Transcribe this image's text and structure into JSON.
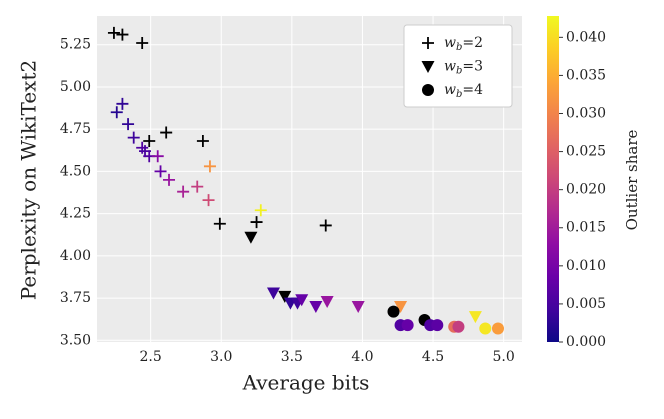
{
  "chart_data": {
    "type": "scatter",
    "x_label": "Average bits",
    "y_label": "Perplexity on WikiText2",
    "colorbar_label": "Outlier share",
    "colormap": "plasma",
    "null_color": "#000000",
    "xlim": [
      2.12,
      5.13
    ],
    "xticks": [
      2.5,
      {
        "value": 3.0,
        "label": "3.0"
      },
      3.5,
      {
        "value": 4.0,
        "label": "4.0"
      },
      4.5,
      {
        "value": 5.0,
        "label": "5.0"
      }
    ],
    "ylim": [
      3.49,
      5.42
    ],
    "yticks": [
      {
        "value": 3.5,
        "label": "3.50"
      },
      3.75,
      {
        "value": 4.0,
        "label": "4.00"
      },
      4.25,
      {
        "value": 4.5,
        "label": "4.50"
      },
      4.75,
      {
        "value": 5.0,
        "label": "5.00"
      },
      5.25
    ],
    "clim": [
      0,
      0.0428
    ],
    "cticks": [
      {
        "value": 0,
        "label": "0.000"
      },
      {
        "value": 0.005,
        "label": "0.005"
      },
      {
        "value": 0.01,
        "label": "0.010"
      },
      {
        "value": 0.015,
        "label": "0.015"
      },
      {
        "value": 0.02,
        "label": "0.020"
      },
      {
        "value": 0.025,
        "label": "0.025"
      },
      {
        "value": 0.03,
        "label": "0.030"
      },
      {
        "value": 0.035,
        "label": "0.035"
      },
      {
        "value": 0.04,
        "label": "0.040"
      }
    ],
    "grid": true,
    "legend": "upper right",
    "series": [
      {
        "name": "w_b=2",
        "marker": "plus",
        "x": [
          2.24,
          2.3,
          2.44,
          2.49,
          2.61,
          2.87,
          2.99,
          3.25,
          3.74,
          2.3,
          2.26,
          2.34,
          2.38,
          2.44,
          2.46,
          2.49,
          2.55,
          2.57,
          2.63,
          2.73,
          2.83,
          2.92,
          2.91,
          3.28
        ],
        "y": [
          5.32,
          5.31,
          5.26,
          4.68,
          4.73,
          4.68,
          4.19,
          4.2,
          4.18,
          4.9,
          4.85,
          4.78,
          4.7,
          4.64,
          4.62,
          4.59,
          4.59,
          4.5,
          4.45,
          4.38,
          4.41,
          4.53,
          4.33,
          4.27
        ],
        "c": [
          null,
          null,
          null,
          null,
          null,
          null,
          null,
          null,
          null,
          0.003,
          0.002,
          0.003,
          0.004,
          0.006,
          0.005,
          0.006,
          0.012,
          0.008,
          0.014,
          0.016,
          0.02,
          0.032,
          0.022,
          0.042
        ]
      },
      {
        "name": "w_b=3",
        "marker": "triangle",
        "x": [
          3.21,
          3.45,
          3.37,
          3.49,
          3.54,
          3.57,
          3.67,
          3.75,
          3.97,
          4.27,
          4.8
        ],
        "y": [
          4.11,
          3.76,
          3.78,
          3.72,
          3.72,
          3.74,
          3.7,
          3.73,
          3.7,
          3.7,
          3.64
        ],
        "c": [
          null,
          null,
          0.004,
          0.003,
          0.004,
          0.008,
          0.008,
          0.014,
          0.014,
          0.032,
          0.041
        ]
      },
      {
        "name": "w_b=4",
        "marker": "circle",
        "x": [
          4.22,
          4.44,
          4.27,
          4.32,
          4.48,
          4.53,
          4.65,
          4.68,
          4.87,
          4.96
        ],
        "y": [
          3.67,
          3.62,
          3.59,
          3.59,
          3.59,
          3.59,
          3.58,
          3.58,
          3.57,
          3.57
        ],
        "c": [
          null,
          null,
          0.006,
          0.008,
          0.006,
          0.007,
          0.027,
          0.02,
          0.041,
          0.033
        ]
      }
    ]
  }
}
